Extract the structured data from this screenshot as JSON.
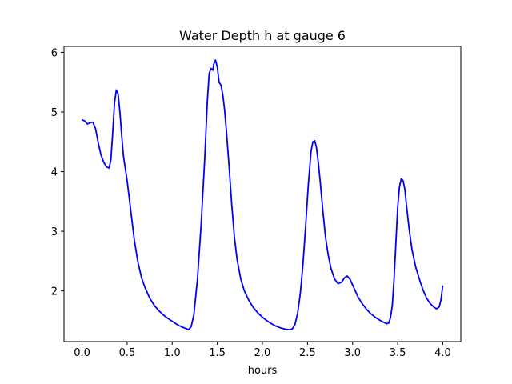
{
  "chart_data": {
    "type": "line",
    "title": "Water Depth h at gauge 6",
    "xlabel": "hours",
    "ylabel": "",
    "xlim": [
      -0.2,
      4.2
    ],
    "ylim": [
      1.15,
      6.1
    ],
    "grid": false,
    "legend": "none",
    "x_ticks": [
      {
        "value": 0.0,
        "label": "0.0"
      },
      {
        "value": 0.5,
        "label": "0.5"
      },
      {
        "value": 1.0,
        "label": "1.0"
      },
      {
        "value": 1.5,
        "label": "1.5"
      },
      {
        "value": 2.0,
        "label": "2.0"
      },
      {
        "value": 2.5,
        "label": "2.5"
      },
      {
        "value": 3.0,
        "label": "3.0"
      },
      {
        "value": 3.5,
        "label": "3.5"
      },
      {
        "value": 4.0,
        "label": "4.0"
      }
    ],
    "y_ticks": [
      {
        "value": 2,
        "label": "2"
      },
      {
        "value": 3,
        "label": "3"
      },
      {
        "value": 4,
        "label": "4"
      },
      {
        "value": 5,
        "label": "5"
      },
      {
        "value": 6,
        "label": "6"
      }
    ],
    "series": [
      {
        "color": "#0000ff",
        "x": [
          0.0,
          0.03,
          0.06,
          0.09,
          0.12,
          0.15,
          0.18,
          0.21,
          0.24,
          0.27,
          0.3,
          0.32,
          0.34,
          0.36,
          0.38,
          0.4,
          0.42,
          0.44,
          0.46,
          0.5,
          0.54,
          0.58,
          0.62,
          0.66,
          0.7,
          0.75,
          0.8,
          0.85,
          0.9,
          0.95,
          1.0,
          1.05,
          1.1,
          1.15,
          1.18,
          1.21,
          1.24,
          1.28,
          1.32,
          1.36,
          1.39,
          1.41,
          1.43,
          1.45,
          1.46,
          1.48,
          1.5,
          1.52,
          1.54,
          1.56,
          1.58,
          1.6,
          1.63,
          1.66,
          1.69,
          1.72,
          1.76,
          1.8,
          1.85,
          1.9,
          1.95,
          2.0,
          2.05,
          2.1,
          2.15,
          2.2,
          2.25,
          2.3,
          2.33,
          2.36,
          2.39,
          2.42,
          2.45,
          2.48,
          2.51,
          2.54,
          2.56,
          2.58,
          2.6,
          2.62,
          2.64,
          2.67,
          2.7,
          2.73,
          2.76,
          2.8,
          2.84,
          2.88,
          2.91,
          2.94,
          2.97,
          3.0,
          3.03,
          3.06,
          3.1,
          3.15,
          3.2,
          3.25,
          3.3,
          3.35,
          3.38,
          3.4,
          3.42,
          3.44,
          3.46,
          3.48,
          3.5,
          3.52,
          3.54,
          3.56,
          3.58,
          3.6,
          3.63,
          3.66,
          3.7,
          3.74,
          3.78,
          3.82,
          3.86,
          3.9,
          3.93,
          3.96,
          3.98,
          4.0
        ],
        "y": [
          4.87,
          4.85,
          4.8,
          4.82,
          4.83,
          4.72,
          4.48,
          4.28,
          4.16,
          4.08,
          4.06,
          4.2,
          4.65,
          5.15,
          5.37,
          5.3,
          5.0,
          4.6,
          4.25,
          3.85,
          3.35,
          2.85,
          2.48,
          2.22,
          2.05,
          1.88,
          1.76,
          1.67,
          1.6,
          1.54,
          1.49,
          1.44,
          1.4,
          1.37,
          1.35,
          1.4,
          1.6,
          2.2,
          3.1,
          4.2,
          5.2,
          5.65,
          5.73,
          5.7,
          5.8,
          5.87,
          5.75,
          5.5,
          5.45,
          5.3,
          5.05,
          4.7,
          4.1,
          3.45,
          2.9,
          2.52,
          2.2,
          2.0,
          1.84,
          1.72,
          1.63,
          1.56,
          1.5,
          1.45,
          1.41,
          1.38,
          1.36,
          1.35,
          1.36,
          1.43,
          1.62,
          1.95,
          2.45,
          3.1,
          3.8,
          4.35,
          4.5,
          4.52,
          4.4,
          4.15,
          3.85,
          3.35,
          2.9,
          2.6,
          2.38,
          2.2,
          2.12,
          2.15,
          2.22,
          2.25,
          2.2,
          2.1,
          2.0,
          1.9,
          1.8,
          1.7,
          1.62,
          1.56,
          1.51,
          1.47,
          1.45,
          1.46,
          1.55,
          1.75,
          2.2,
          2.8,
          3.4,
          3.75,
          3.88,
          3.85,
          3.7,
          3.4,
          3.0,
          2.68,
          2.4,
          2.2,
          2.02,
          1.88,
          1.79,
          1.73,
          1.7,
          1.73,
          1.85,
          2.09
        ]
      }
    ]
  }
}
